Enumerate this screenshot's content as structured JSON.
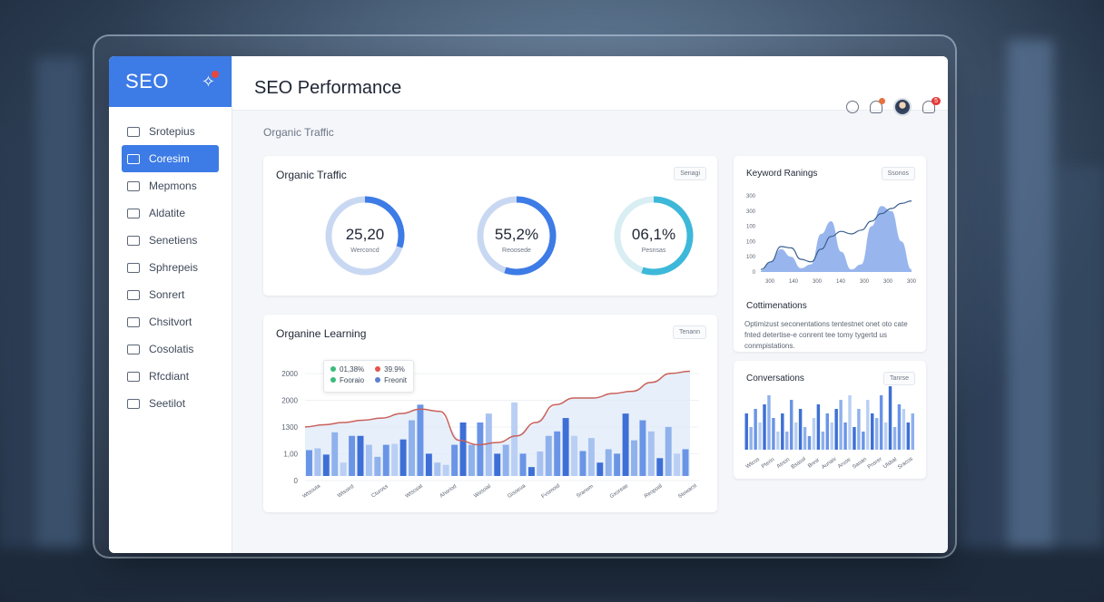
{
  "app": {
    "brand": "SEO",
    "brand_icon": "sparkle-wand-icon",
    "page_title": "SEO Performance",
    "section_label": "Organic Traffic"
  },
  "sidebar": {
    "items": [
      {
        "label": "Srotepius",
        "icon": "document-icon",
        "active": false
      },
      {
        "label": "Coresim",
        "icon": "chart-icon",
        "active": true
      },
      {
        "label": "Mepmons",
        "icon": "mail-icon",
        "active": false
      },
      {
        "label": "Aldatite",
        "icon": "edit-icon",
        "active": false
      },
      {
        "label": "Senetiens",
        "icon": "list-icon",
        "active": false
      },
      {
        "label": "Sphrepeis",
        "icon": "smile-icon",
        "active": false
      },
      {
        "label": "Sonrert",
        "icon": "file-icon",
        "active": false
      },
      {
        "label": "Chsitvort",
        "icon": "clipboard-icon",
        "active": false
      },
      {
        "label": "Cosolatis",
        "icon": "folder-icon",
        "active": false
      },
      {
        "label": "Rfcdiant",
        "icon": "info-icon",
        "active": false
      },
      {
        "label": "Seetilot",
        "icon": "settings-icon",
        "active": false
      }
    ]
  },
  "header": {
    "icons": [
      "user-icon",
      "bell-icon",
      "avatar",
      "notification-icon"
    ],
    "notification_badge": "5"
  },
  "organic_traffic": {
    "title": "Organic Traffic",
    "chip": "Senagi",
    "donuts": [
      {
        "value_text": "25,20",
        "sub": "Werconcd",
        "fraction": 0.25,
        "color": "#3d7be6"
      },
      {
        "value_text": "55,2%",
        "sub": "Reoosede",
        "fraction": 0.552,
        "color": "#3d7be6"
      },
      {
        "value_text": "06,1%",
        "sub": "Pesnsas",
        "fraction": 0.061,
        "color": "#3db8d9"
      }
    ]
  },
  "organine_learning": {
    "title": "Organine Learning",
    "chip": "Tenann",
    "legend": [
      {
        "label": "01,38%",
        "color": "#3dbb7a"
      },
      {
        "label": "39.9%",
        "color": "#e0564e"
      },
      {
        "label": "Fooraio",
        "color": "#3dbb7a"
      },
      {
        "label": "Freonit",
        "color": "#5d7fd0"
      }
    ]
  },
  "keyword_rankings": {
    "title": "Keyword Ranings",
    "chip": "Ssonos"
  },
  "commentations": {
    "title": "Cottimenations",
    "text": "Optimizust seconentations tentestnet onet oto cate fnted detertise-e conrent tee tomy tygertd us conmpistations."
  },
  "conversations": {
    "title": "Conversations",
    "chip": "Tanrse"
  },
  "chart_data": [
    {
      "type": "bar",
      "title": "Organine Learning",
      "y_ticks": [
        "2000",
        "2000",
        "1300",
        "1,00",
        "0"
      ],
      "ylim": [
        0,
        2400
      ],
      "x_labels": [
        "Wtsouta",
        "Wtsoird",
        "Ctuross",
        "Wtsosat",
        "Ahoriod",
        "Wosoial",
        "Gisoeua",
        "Fvomoid",
        "Sranom",
        "Gxoreae",
        "Reopoal",
        "Stowarst"
      ],
      "bars": [
        {
          "v": 580,
          "c": "#6a95e6"
        },
        {
          "v": 620,
          "c": "#a7c2f0"
        },
        {
          "v": 480,
          "c": "#3d6fd6"
        },
        {
          "v": 980,
          "c": "#8fb1ec"
        },
        {
          "v": 300,
          "c": "#b9cff4"
        },
        {
          "v": 900,
          "c": "#6a95e6"
        },
        {
          "v": 900,
          "c": "#3d6fd6"
        },
        {
          "v": 700,
          "c": "#a7c2f0"
        },
        {
          "v": 430,
          "c": "#8fb1ec"
        },
        {
          "v": 700,
          "c": "#6a95e6"
        },
        {
          "v": 720,
          "c": "#b9cff4"
        },
        {
          "v": 820,
          "c": "#3d6fd6"
        },
        {
          "v": 1250,
          "c": "#8fb1ec"
        },
        {
          "v": 1600,
          "c": "#6a95e6"
        },
        {
          "v": 500,
          "c": "#3d6fd6"
        },
        {
          "v": 300,
          "c": "#a7c2f0"
        },
        {
          "v": 250,
          "c": "#b9cff4"
        },
        {
          "v": 700,
          "c": "#6a95e6"
        },
        {
          "v": 1200,
          "c": "#3d6fd6"
        },
        {
          "v": 700,
          "c": "#8fb1ec"
        },
        {
          "v": 1200,
          "c": "#6a95e6"
        },
        {
          "v": 1400,
          "c": "#a7c2f0"
        },
        {
          "v": 500,
          "c": "#3d6fd6"
        },
        {
          "v": 700,
          "c": "#8fb1ec"
        },
        {
          "v": 1650,
          "c": "#b9cff4"
        },
        {
          "v": 500,
          "c": "#6a95e6"
        },
        {
          "v": 200,
          "c": "#3d6fd6"
        },
        {
          "v": 550,
          "c": "#a7c2f0"
        },
        {
          "v": 900,
          "c": "#8fb1ec"
        },
        {
          "v": 1000,
          "c": "#6a95e6"
        },
        {
          "v": 1300,
          "c": "#3d6fd6"
        },
        {
          "v": 900,
          "c": "#b9cff4"
        },
        {
          "v": 560,
          "c": "#6a95e6"
        },
        {
          "v": 850,
          "c": "#a7c2f0"
        },
        {
          "v": 300,
          "c": "#3d6fd6"
        },
        {
          "v": 600,
          "c": "#8fb1ec"
        },
        {
          "v": 500,
          "c": "#6a95e6"
        },
        {
          "v": 1400,
          "c": "#3d6fd6"
        },
        {
          "v": 800,
          "c": "#8fb1ec"
        },
        {
          "v": 1250,
          "c": "#6a95e6"
        },
        {
          "v": 1000,
          "c": "#a7c2f0"
        },
        {
          "v": 400,
          "c": "#3d6fd6"
        },
        {
          "v": 1100,
          "c": "#8fb1ec"
        },
        {
          "v": 500,
          "c": "#b9cff4"
        },
        {
          "v": 600,
          "c": "#6a95e6"
        }
      ],
      "line": [
        1100,
        1150,
        1200,
        1250,
        1300,
        1400,
        1500,
        1450,
        800,
        700,
        750,
        900,
        1200,
        1600,
        1750,
        1750,
        1850,
        1900,
        2100,
        2300,
        2350
      ],
      "line_color": "#c9615a"
    },
    {
      "type": "area",
      "title": "Keyword Ranings",
      "y_ticks": [
        "300",
        "300",
        "100",
        "100",
        "100",
        "0"
      ],
      "x_ticks": [
        "300",
        "140",
        "300",
        "140",
        "300",
        "300",
        "300"
      ],
      "ylim": [
        0,
        300
      ],
      "series_a": [
        5,
        40,
        90,
        60,
        15,
        30,
        150,
        200,
        80,
        10,
        30,
        180,
        260,
        240,
        120,
        10
      ],
      "series_b": [
        10,
        40,
        100,
        95,
        50,
        40,
        90,
        140,
        160,
        150,
        165,
        200,
        230,
        250,
        270,
        280
      ]
    },
    {
      "type": "bar",
      "title": "Conversations",
      "x_labels": [
        "Wtcos",
        "Pterin",
        "Atnon",
        "Bsasol",
        "Bnnir",
        "Aunaiv",
        "Aruse",
        "Saoan",
        "Pnsrer",
        "Ulsbal",
        "Sracos"
      ],
      "values": [
        40,
        25,
        45,
        30,
        50,
        60,
        35,
        20,
        40,
        20,
        55,
        30,
        45,
        25,
        15,
        35,
        50,
        20,
        40,
        30,
        45,
        55,
        30,
        60,
        25,
        45,
        20,
        55,
        40,
        35,
        60,
        30,
        70,
        25,
        50,
        45,
        30,
        40
      ]
    }
  ]
}
